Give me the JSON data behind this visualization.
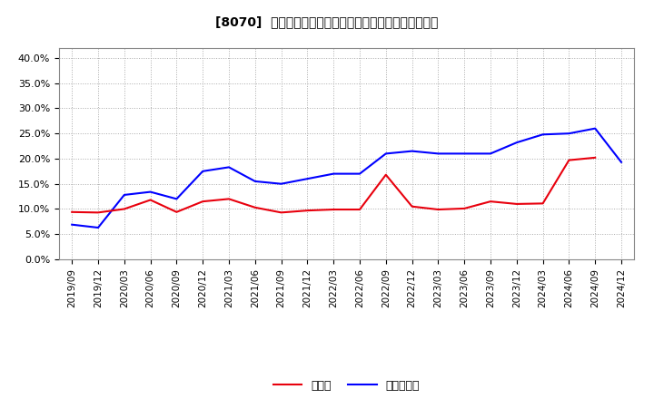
{
  "title": "[8070]  現預金、有利子負債の総資産に対する比率の推移",
  "x_labels": [
    "2019/09",
    "2019/12",
    "2020/03",
    "2020/06",
    "2020/09",
    "2020/12",
    "2021/03",
    "2021/06",
    "2021/09",
    "2021/12",
    "2022/03",
    "2022/06",
    "2022/09",
    "2022/12",
    "2023/03",
    "2023/06",
    "2023/09",
    "2023/12",
    "2024/03",
    "2024/06",
    "2024/09",
    "2024/12"
  ],
  "cash": [
    0.094,
    0.093,
    0.1,
    0.118,
    0.094,
    0.115,
    0.12,
    0.103,
    0.093,
    0.097,
    0.099,
    0.099,
    0.168,
    0.105,
    0.099,
    0.101,
    0.115,
    0.11,
    0.111,
    0.197,
    0.202,
    null
  ],
  "debt": [
    0.069,
    0.063,
    0.128,
    0.134,
    0.12,
    0.175,
    0.183,
    0.155,
    0.15,
    0.16,
    0.17,
    0.17,
    0.21,
    0.215,
    0.21,
    0.21,
    0.21,
    0.232,
    0.248,
    0.25,
    0.26,
    0.193
  ],
  "cash_color": "#e8000d",
  "debt_color": "#0000ff",
  "background_color": "#ffffff",
  "grid_color": "#aaaaaa",
  "ylim": [
    0.0,
    0.42
  ],
  "yticks": [
    0.0,
    0.05,
    0.1,
    0.15,
    0.2,
    0.25,
    0.3,
    0.35,
    0.4
  ],
  "legend_cash": "現預金",
  "legend_debt": "有利子負債"
}
